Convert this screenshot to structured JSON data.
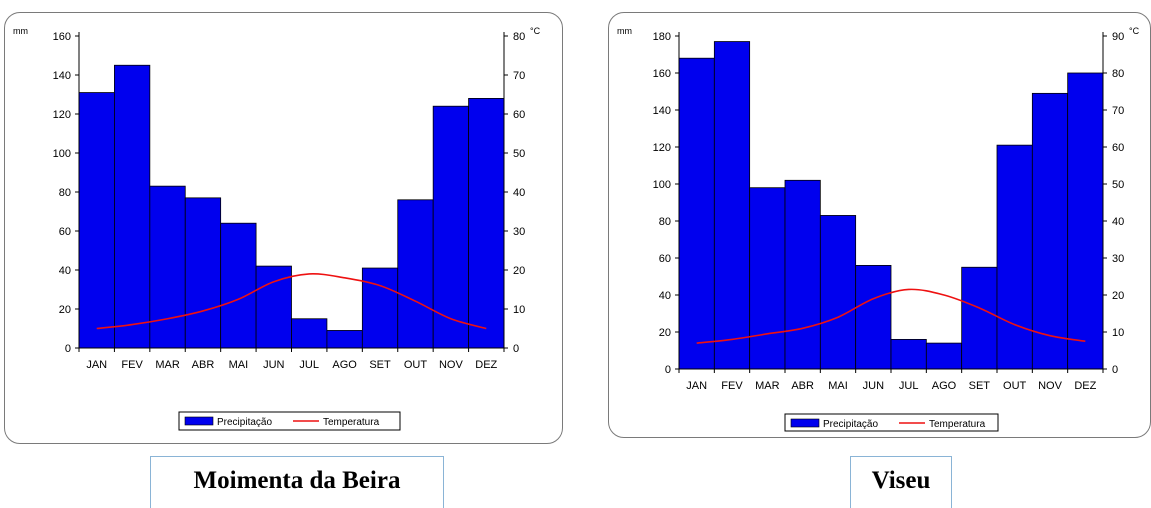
{
  "colors": {
    "bar": "#0000ee",
    "bar_stroke": "#000000",
    "line": "#ee1111"
  },
  "chart_data": [
    {
      "type": "bar",
      "title": "Moimenta da Beira",
      "categories": [
        "JAN",
        "FEV",
        "MAR",
        "ABR",
        "MAI",
        "JUN",
        "JUL",
        "AGO",
        "SET",
        "OUT",
        "NOV",
        "DEZ"
      ],
      "ylabel": "mm",
      "y2label": "°C",
      "ylim": [
        0,
        160
      ],
      "y2lim": [
        0,
        80
      ],
      "yticks": [
        0,
        20,
        40,
        60,
        80,
        100,
        120,
        140,
        160
      ],
      "y2ticks": [
        0,
        10,
        20,
        30,
        40,
        50,
        60,
        70,
        80
      ],
      "series": [
        {
          "name": "Precipitação",
          "kind": "bar",
          "axis": "left",
          "values": [
            131,
            145,
            83,
            77,
            64,
            42,
            15,
            9,
            41,
            76,
            124,
            128
          ]
        },
        {
          "name": "Temperatura",
          "kind": "line",
          "axis": "right",
          "values": [
            5,
            6,
            7.5,
            9.5,
            12.5,
            17,
            19,
            18,
            16,
            12,
            7.5,
            5
          ]
        }
      ],
      "legend_position": "bottom-center"
    },
    {
      "type": "bar",
      "title": "Viseu",
      "categories": [
        "JAN",
        "FEV",
        "MAR",
        "ABR",
        "MAI",
        "JUN",
        "JUL",
        "AGO",
        "SET",
        "OUT",
        "NOV",
        "DEZ"
      ],
      "ylabel": "mm",
      "y2label": "°C",
      "ylim": [
        0,
        180
      ],
      "y2lim": [
        0,
        90
      ],
      "yticks": [
        0,
        20,
        40,
        60,
        80,
        100,
        120,
        140,
        160,
        180
      ],
      "y2ticks": [
        0,
        10,
        20,
        30,
        40,
        50,
        60,
        70,
        80,
        90
      ],
      "series": [
        {
          "name": "Precipitação",
          "kind": "bar",
          "axis": "left",
          "values": [
            168,
            177,
            98,
            102,
            83,
            56,
            16,
            14,
            55,
            121,
            149,
            160
          ]
        },
        {
          "name": "Temperatura",
          "kind": "line",
          "axis": "right",
          "values": [
            7,
            8,
            9.5,
            11,
            14,
            19,
            21.5,
            20,
            16.5,
            12,
            9,
            7.5
          ]
        }
      ],
      "legend_position": "bottom-center"
    }
  ],
  "captions": [
    "Moimenta da Beira",
    "Viseu"
  ]
}
